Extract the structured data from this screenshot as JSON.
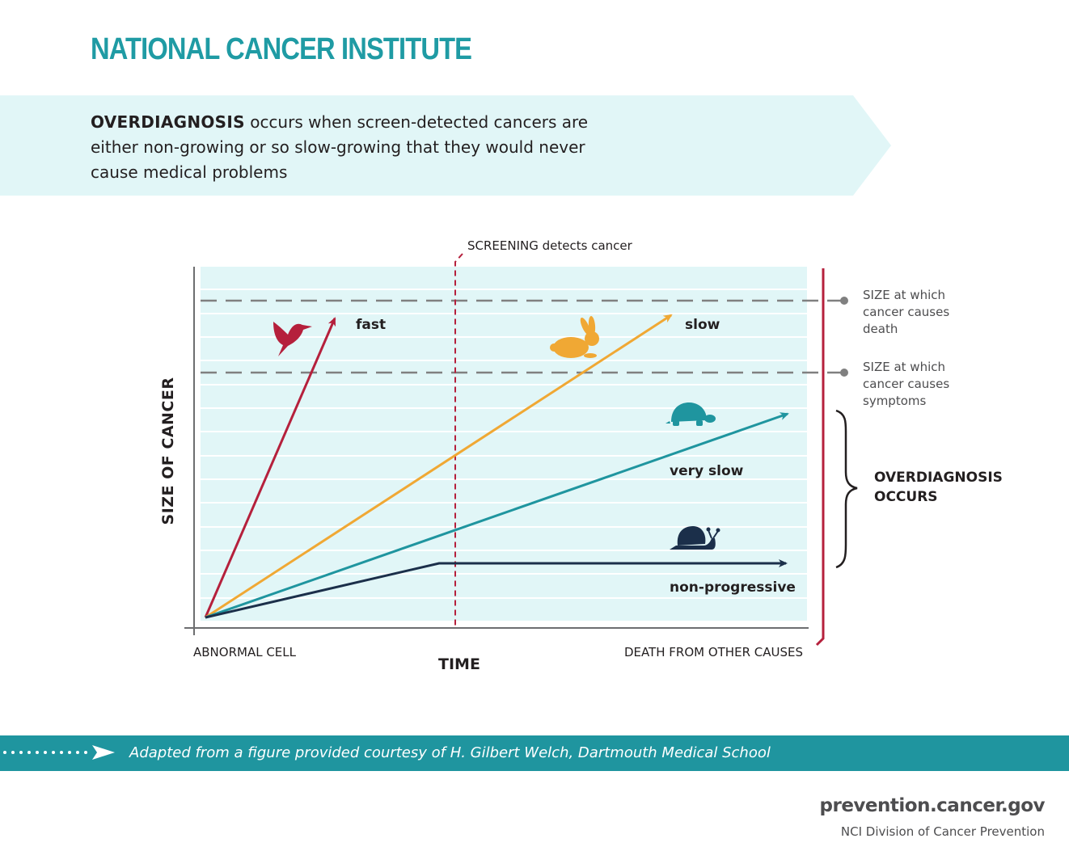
{
  "header": {
    "brand": "NATIONAL CANCER INSTITUTE"
  },
  "intro": {
    "term": "OVERDIAGNOSIS",
    "definition": " occurs when screen-detected cancers are either non-growing or so slow-growing that they would never cause medical problems"
  },
  "diagram": {
    "screening_term": "SCREENING",
    "screening_text": " detects cancer",
    "y_axis_label": "SIZE OF CANCER",
    "x_axis_label": "TIME",
    "x_start_label": "ABNORMAL CELL",
    "x_end_label": "DEATH FROM OTHER CAUSES",
    "threshold_death": [
      "SIZE at which",
      "cancer causes",
      "death"
    ],
    "threshold_symptoms": [
      "SIZE at which",
      "cancer causes",
      "symptoms"
    ],
    "overdiagnosis": [
      "OVERDIAGNOSIS",
      "OCCURS"
    ],
    "curves": [
      {
        "label": "fast",
        "animal": "hummingbird-icon",
        "color": "#b5203c"
      },
      {
        "label": "slow",
        "animal": "rabbit-icon",
        "color": "#f0a834"
      },
      {
        "label": "very slow",
        "animal": "turtle-icon",
        "color": "#1f959f"
      },
      {
        "label": "non-progressive",
        "animal": "snail-icon",
        "color": "#1b2f4a"
      }
    ],
    "colors": {
      "plot_background": "#e1f6f7",
      "threshold_line": "#808080",
      "screening_line": "#b5203c",
      "death_line": "#b5203c"
    }
  },
  "footer": {
    "credit": "Adapted from a figure provided courtesy of H. Gilbert Welch, Dartmouth Medical School",
    "url": "prevention.cancer.gov",
    "division": "NCI Division of Cancer Prevention",
    "bar_color": "#1f959f"
  }
}
